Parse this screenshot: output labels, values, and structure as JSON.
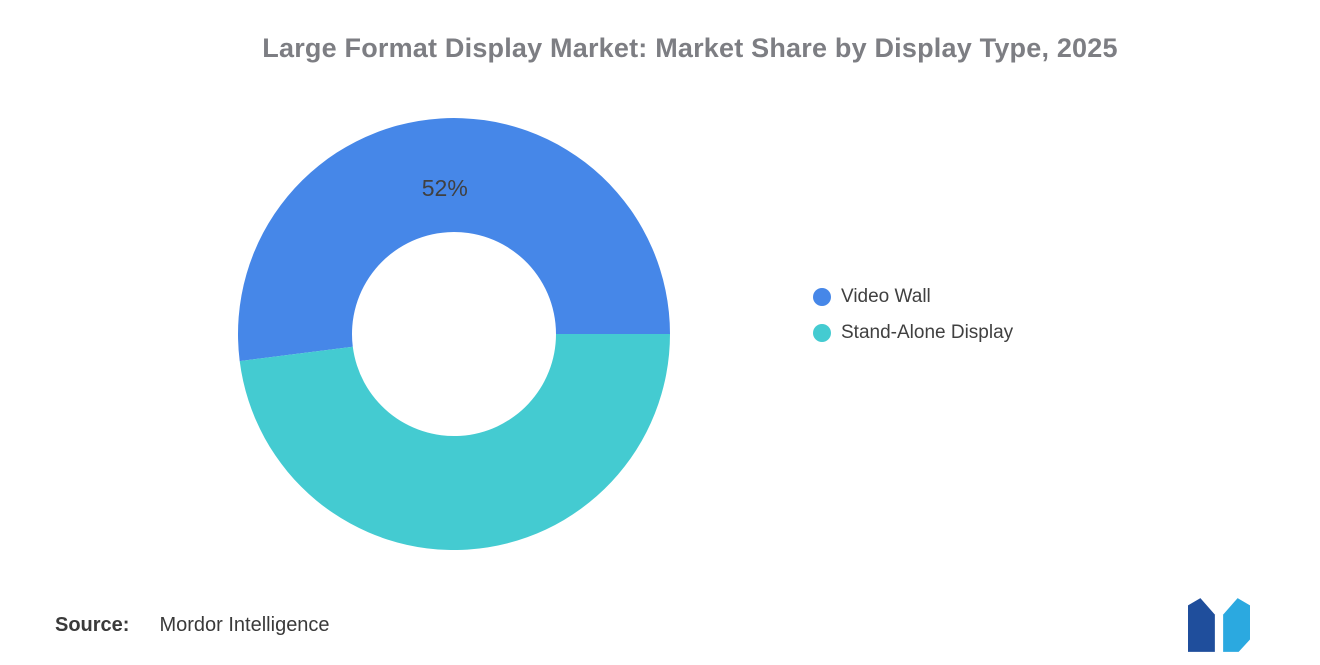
{
  "chart_data": {
    "type": "pie",
    "subtype": "donut",
    "title": "Large Format Display Market: Market Share by Display Type, 2025",
    "unit": "%",
    "series": [
      {
        "name": "Video Wall",
        "value": 52,
        "label": "52%",
        "color": "#4687E8"
      },
      {
        "name": "Stand-Alone Display",
        "value": 48,
        "label": "",
        "color": "#44CBD1"
      }
    ],
    "start_angle_deg": 90,
    "direction": "counterclockwise",
    "inner_radius_ratio": 0.47,
    "legend_position": "right",
    "slice_label_color": "#404040",
    "title_color": "#7d7e83"
  },
  "footer": {
    "source_label": "Source:",
    "source_value": "Mordor Intelligence"
  },
  "logo": {
    "name": "mordor-intelligence-logo",
    "colors": {
      "dark": "#1F4E9C",
      "light": "#2BA9E0"
    }
  }
}
